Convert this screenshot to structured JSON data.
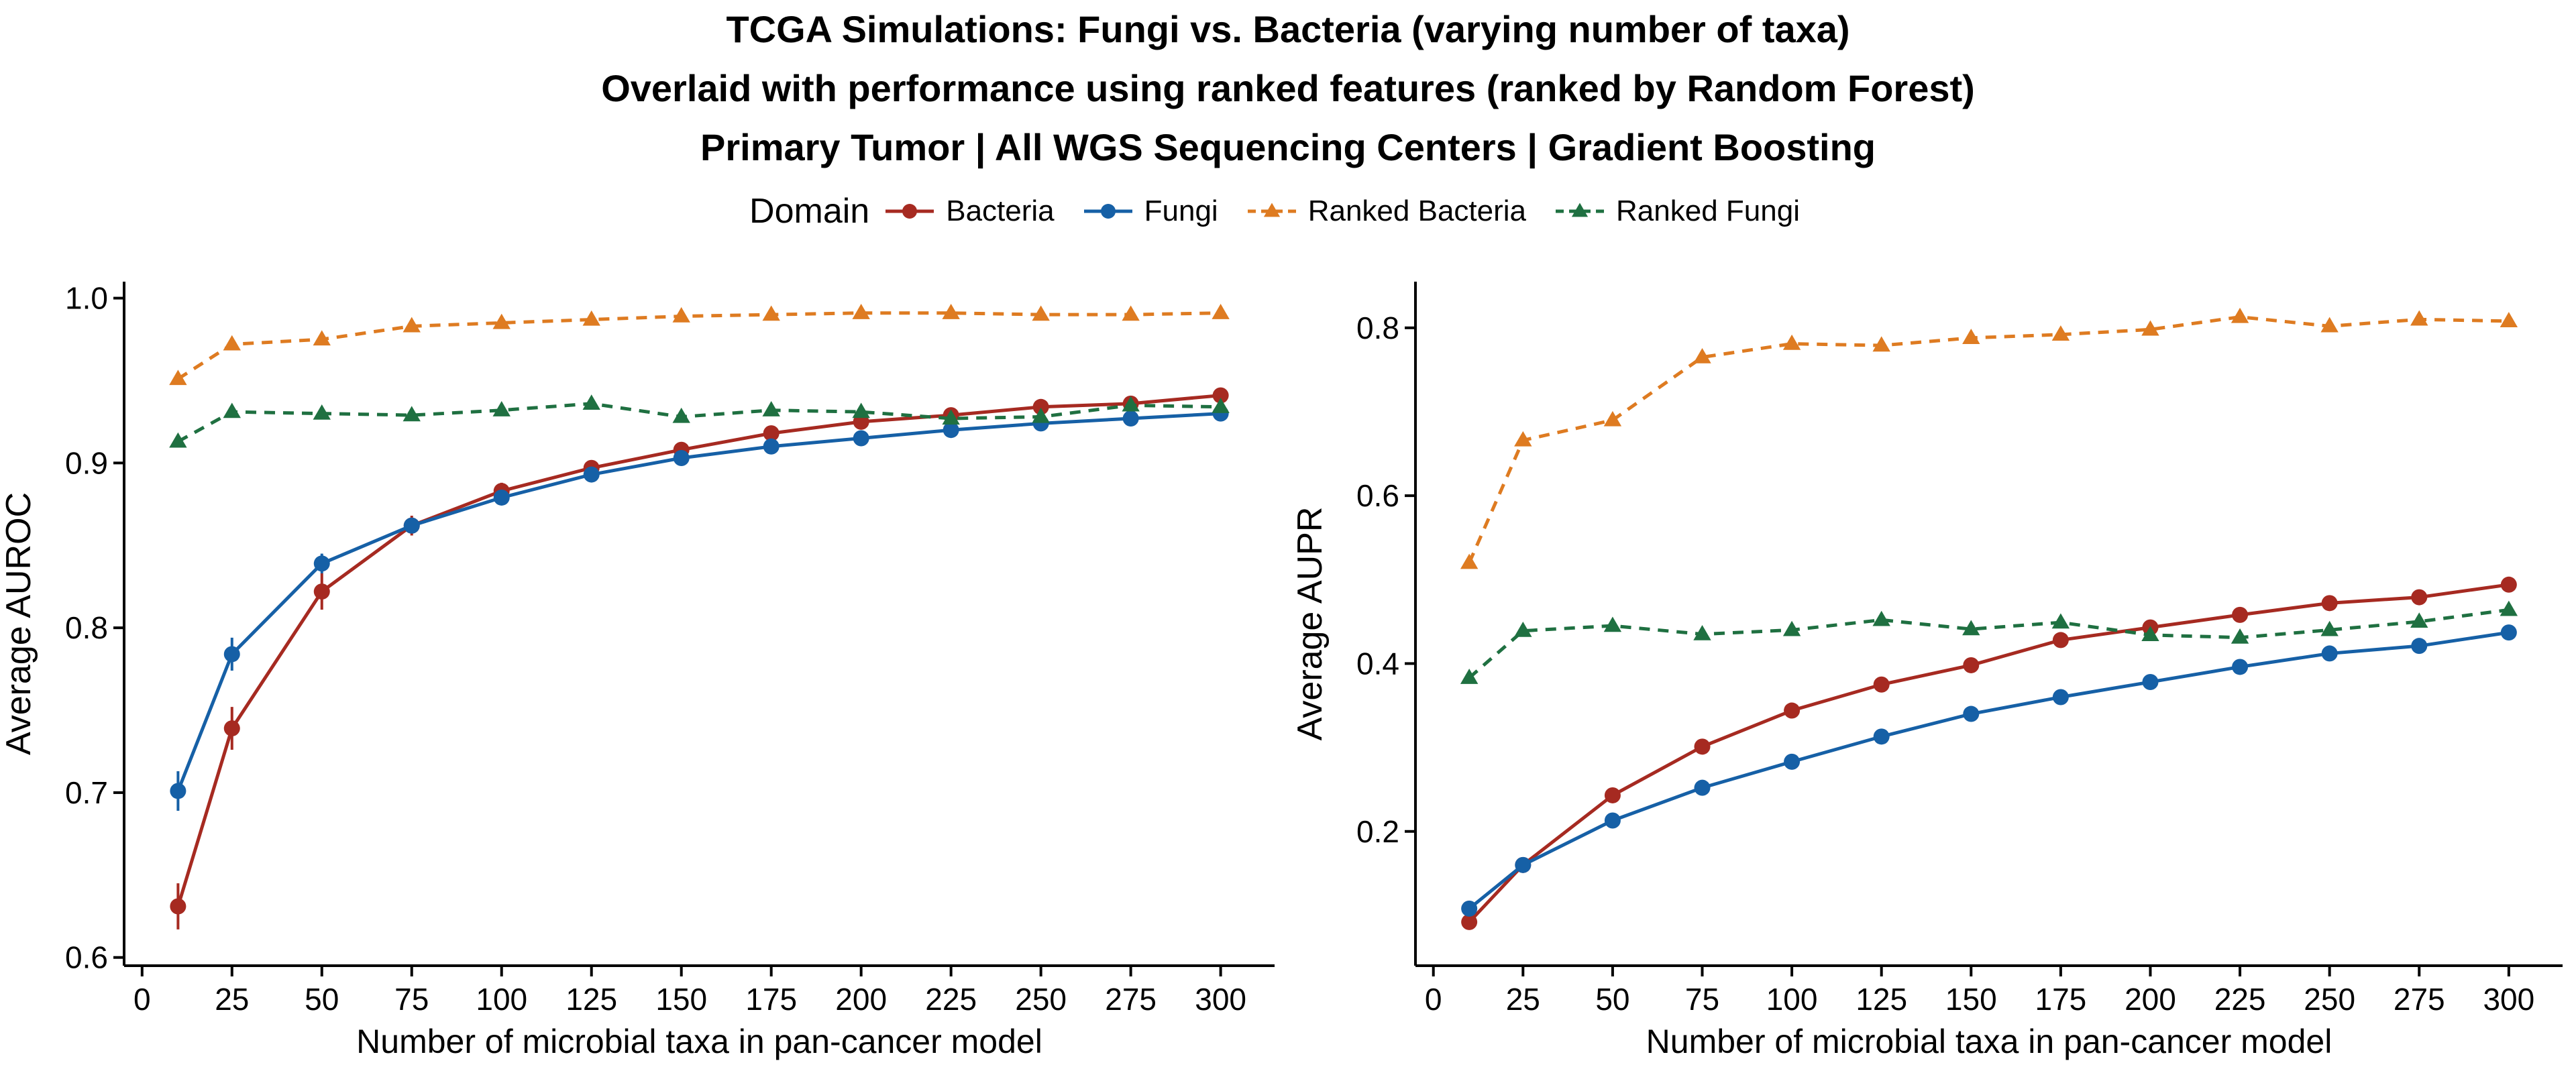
{
  "title": {
    "line1": "TCGA Simulations: Fungi vs. Bacteria (varying number of taxa)",
    "line2": "Overlaid with performance using ranked features (ranked by Random Forest)",
    "line3": "Primary Tumor | All WGS Sequencing Centers | Gradient Boosting"
  },
  "legend": {
    "title": "Domain",
    "items": [
      {
        "label": "Bacteria",
        "color": "#A62A21",
        "shape": "circle",
        "dash": "solid"
      },
      {
        "label": "Fungi",
        "color": "#1660A6",
        "shape": "circle",
        "dash": "solid"
      },
      {
        "label": "Ranked Bacteria",
        "color": "#DE7B21",
        "shape": "triangle",
        "dash": "dashed"
      },
      {
        "label": "Ranked Fungi",
        "color": "#1F7041",
        "shape": "triangle",
        "dash": "dashed"
      }
    ]
  },
  "chart_data": [
    {
      "type": "line",
      "xlabel": "Number of microbial taxa in pan-cancer model",
      "ylabel": "Average AUROC",
      "xlim": [
        -5,
        315
      ],
      "ylim": [
        0.595,
        1.01
      ],
      "xticks": [
        0,
        25,
        50,
        75,
        100,
        125,
        150,
        175,
        200,
        225,
        250,
        275,
        300
      ],
      "yticks": [
        0.6,
        0.7,
        0.8,
        0.9,
        1.0
      ],
      "ytick_labels": [
        "0.6",
        "0.7",
        "0.8",
        "0.9",
        "1.0"
      ],
      "x": [
        10,
        25,
        50,
        75,
        100,
        125,
        150,
        175,
        200,
        225,
        250,
        275,
        300
      ],
      "series": [
        {
          "name": "Bacteria",
          "color": "#A62A21",
          "marker": "circle",
          "dash": "solid",
          "values": [
            0.631,
            0.739,
            0.822,
            0.862,
            0.883,
            0.897,
            0.908,
            0.918,
            0.925,
            0.929,
            0.934,
            0.936,
            0.941
          ],
          "errors": [
            0.014,
            0.013,
            0.011,
            0.006,
            0.005,
            0.004,
            0.003,
            0.003,
            0.003,
            0.002,
            0.002,
            0.002,
            0.002
          ]
        },
        {
          "name": "Fungi",
          "color": "#1660A6",
          "marker": "circle",
          "dash": "solid",
          "values": [
            0.701,
            0.784,
            0.839,
            0.862,
            0.879,
            0.893,
            0.903,
            0.91,
            0.915,
            0.92,
            0.924,
            0.927,
            0.93
          ],
          "errors": [
            0.012,
            0.01,
            0.006,
            0.004,
            0.003,
            0.003,
            0.002,
            0.002,
            0.002,
            0.002,
            0.002,
            0.002,
            0.002
          ]
        },
        {
          "name": "Ranked Bacteria",
          "color": "#DE7B21",
          "marker": "triangle",
          "dash": "dashed",
          "values": [
            0.951,
            0.972,
            0.975,
            0.983,
            0.985,
            0.987,
            0.989,
            0.99,
            0.991,
            0.991,
            0.99,
            0.99,
            0.991
          ]
        },
        {
          "name": "Ranked Fungi",
          "color": "#1F7041",
          "marker": "triangle",
          "dash": "dashed",
          "values": [
            0.913,
            0.931,
            0.93,
            0.929,
            0.932,
            0.936,
            0.928,
            0.932,
            0.931,
            0.927,
            0.928,
            0.935,
            0.934
          ]
        }
      ]
    },
    {
      "type": "line",
      "xlabel": "Number of microbial taxa in pan-cancer model",
      "ylabel": "Average AUPR",
      "xlim": [
        -5,
        315
      ],
      "ylim": [
        0.04,
        0.855
      ],
      "xticks": [
        0,
        25,
        50,
        75,
        100,
        125,
        150,
        175,
        200,
        225,
        250,
        275,
        300
      ],
      "yticks": [
        0.2,
        0.4,
        0.6,
        0.8
      ],
      "ytick_labels": [
        "0.2",
        "0.4",
        "0.6",
        "0.8"
      ],
      "x": [
        10,
        25,
        50,
        75,
        100,
        125,
        150,
        175,
        200,
        225,
        250,
        275,
        300
      ],
      "series": [
        {
          "name": "Bacteria",
          "color": "#A62A21",
          "marker": "circle",
          "dash": "solid",
          "values": [
            0.092,
            0.16,
            0.243,
            0.301,
            0.344,
            0.375,
            0.398,
            0.428,
            0.443,
            0.458,
            0.472,
            0.479,
            0.494
          ]
        },
        {
          "name": "Fungi",
          "color": "#1660A6",
          "marker": "circle",
          "dash": "solid",
          "values": [
            0.108,
            0.16,
            0.213,
            0.252,
            0.283,
            0.313,
            0.34,
            0.36,
            0.378,
            0.396,
            0.412,
            0.421,
            0.437
          ]
        },
        {
          "name": "Ranked Bacteria",
          "color": "#DE7B21",
          "marker": "triangle",
          "dash": "dashed",
          "values": [
            0.52,
            0.666,
            0.69,
            0.765,
            0.781,
            0.779,
            0.788,
            0.792,
            0.798,
            0.813,
            0.802,
            0.81,
            0.808
          ]
        },
        {
          "name": "Ranked Fungi",
          "color": "#1F7041",
          "marker": "triangle",
          "dash": "dashed",
          "values": [
            0.383,
            0.439,
            0.445,
            0.435,
            0.44,
            0.452,
            0.441,
            0.449,
            0.434,
            0.431,
            0.44,
            0.45,
            0.464
          ]
        }
      ]
    }
  ]
}
